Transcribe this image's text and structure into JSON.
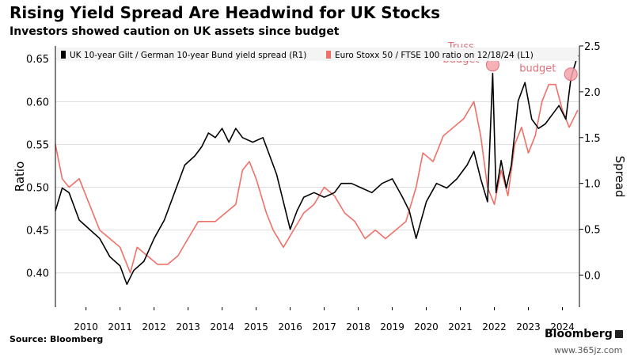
{
  "header": {
    "title": "Rising Yield Spread Are Headwind for UK Stocks",
    "subtitle": "Investors showed caution on UK assets since budget"
  },
  "footer": {
    "source": "Source: Bloomberg",
    "logo": "Bloomberg",
    "watermark": "www.365jz.com"
  },
  "colors": {
    "spread_series": "#000000",
    "ratio_series": "#f07068",
    "marker": "#f4a3aa",
    "annotation": "#e0707a",
    "grid": "#dddddd"
  },
  "chart_data": {
    "type": "line",
    "xlim": [
      2009.6,
      2025.0
    ],
    "x_ticks": [
      "2010",
      "2011",
      "2012",
      "2013",
      "2014",
      "2015",
      "2016",
      "2017",
      "2018",
      "2019",
      "2020",
      "2021",
      "2022",
      "2023",
      "2024"
    ],
    "left_axis": {
      "label": "Ratio",
      "ylim": [
        0.36,
        0.665
      ],
      "ticks": [
        "0.40",
        "0.45",
        "0.50",
        "0.55",
        "0.60",
        "0.65"
      ]
    },
    "right_axis": {
      "label": "Spread",
      "ylim": [
        -0.35,
        2.5
      ],
      "ticks": [
        "0.0",
        "0.5",
        "1.0",
        "1.5",
        "2.0",
        "2.5"
      ]
    },
    "grid": "horizontal",
    "legend_position": "top",
    "series": [
      {
        "name": "UK 10-year Gilt / German 10-year Bund yield spread (R1)",
        "axis": "right",
        "x": [
          2009.6,
          2009.8,
          2010.0,
          2010.3,
          2010.6,
          2010.9,
          2011.2,
          2011.5,
          2011.7,
          2011.9,
          2012.2,
          2012.5,
          2012.8,
          2013.1,
          2013.4,
          2013.7,
          2013.9,
          2014.1,
          2014.3,
          2014.5,
          2014.7,
          2014.9,
          2015.1,
          2015.4,
          2015.7,
          2015.9,
          2016.1,
          2016.3,
          2016.5,
          2016.7,
          2016.9,
          2017.2,
          2017.5,
          2017.8,
          2018.0,
          2018.3,
          2018.6,
          2018.9,
          2019.2,
          2019.5,
          2019.8,
          2020.0,
          2020.2,
          2020.5,
          2020.8,
          2021.1,
          2021.4,
          2021.7,
          2021.9,
          2022.1,
          2022.3,
          2022.45,
          2022.55,
          2022.7,
          2022.85,
          2023.0,
          2023.2,
          2023.4,
          2023.6,
          2023.8,
          2024.0,
          2024.2,
          2024.4,
          2024.6,
          2024.75,
          2024.95
        ],
        "values": [
          0.7,
          0.95,
          0.9,
          0.6,
          0.5,
          0.4,
          0.2,
          0.1,
          -0.1,
          0.05,
          0.15,
          0.4,
          0.6,
          0.9,
          1.2,
          1.3,
          1.4,
          1.55,
          1.5,
          1.6,
          1.45,
          1.6,
          1.5,
          1.45,
          1.5,
          1.3,
          1.1,
          0.8,
          0.5,
          0.7,
          0.85,
          0.9,
          0.85,
          0.9,
          1.0,
          1.0,
          0.95,
          0.9,
          1.0,
          1.05,
          0.85,
          0.7,
          0.4,
          0.8,
          1.0,
          0.95,
          1.05,
          1.2,
          1.35,
          1.05,
          0.8,
          2.2,
          0.9,
          1.25,
          0.95,
          1.2,
          1.9,
          2.1,
          1.7,
          1.6,
          1.65,
          1.75,
          1.85,
          1.7,
          2.15,
          2.4
        ]
      },
      {
        "name": "Euro Stoxx 50 / FTSE 100 ratio on 12/18/24 (L1)",
        "axis": "left",
        "x": [
          2009.6,
          2009.8,
          2010.0,
          2010.3,
          2010.6,
          2010.9,
          2011.2,
          2011.5,
          2011.8,
          2012.0,
          2012.3,
          2012.6,
          2012.9,
          2013.2,
          2013.5,
          2013.8,
          2014.0,
          2014.3,
          2014.6,
          2014.9,
          2015.1,
          2015.3,
          2015.5,
          2015.8,
          2016.0,
          2016.3,
          2016.6,
          2016.9,
          2017.2,
          2017.5,
          2017.8,
          2018.1,
          2018.4,
          2018.7,
          2019.0,
          2019.3,
          2019.6,
          2019.9,
          2020.2,
          2020.4,
          2020.7,
          2021.0,
          2021.3,
          2021.6,
          2021.9,
          2022.1,
          2022.3,
          2022.5,
          2022.7,
          2022.9,
          2023.1,
          2023.3,
          2023.5,
          2023.7,
          2023.9,
          2024.1,
          2024.3,
          2024.5,
          2024.7,
          2024.95
        ],
        "values": [
          0.55,
          0.51,
          0.5,
          0.51,
          0.48,
          0.45,
          0.44,
          0.43,
          0.4,
          0.43,
          0.42,
          0.41,
          0.41,
          0.42,
          0.44,
          0.46,
          0.46,
          0.46,
          0.47,
          0.48,
          0.52,
          0.53,
          0.51,
          0.47,
          0.45,
          0.43,
          0.45,
          0.47,
          0.48,
          0.5,
          0.49,
          0.47,
          0.46,
          0.44,
          0.45,
          0.44,
          0.45,
          0.46,
          0.5,
          0.54,
          0.53,
          0.56,
          0.57,
          0.58,
          0.6,
          0.56,
          0.5,
          0.48,
          0.52,
          0.49,
          0.55,
          0.57,
          0.54,
          0.56,
          0.6,
          0.62,
          0.62,
          0.59,
          0.57,
          0.59
        ]
      }
    ],
    "annotations": [
      {
        "text": "Truss budget",
        "x": 2022.45,
        "value": 0.643,
        "axis": "left"
      },
      {
        "text": "Reeves budget",
        "x": 2024.75,
        "value": 0.632,
        "axis": "left"
      }
    ]
  }
}
